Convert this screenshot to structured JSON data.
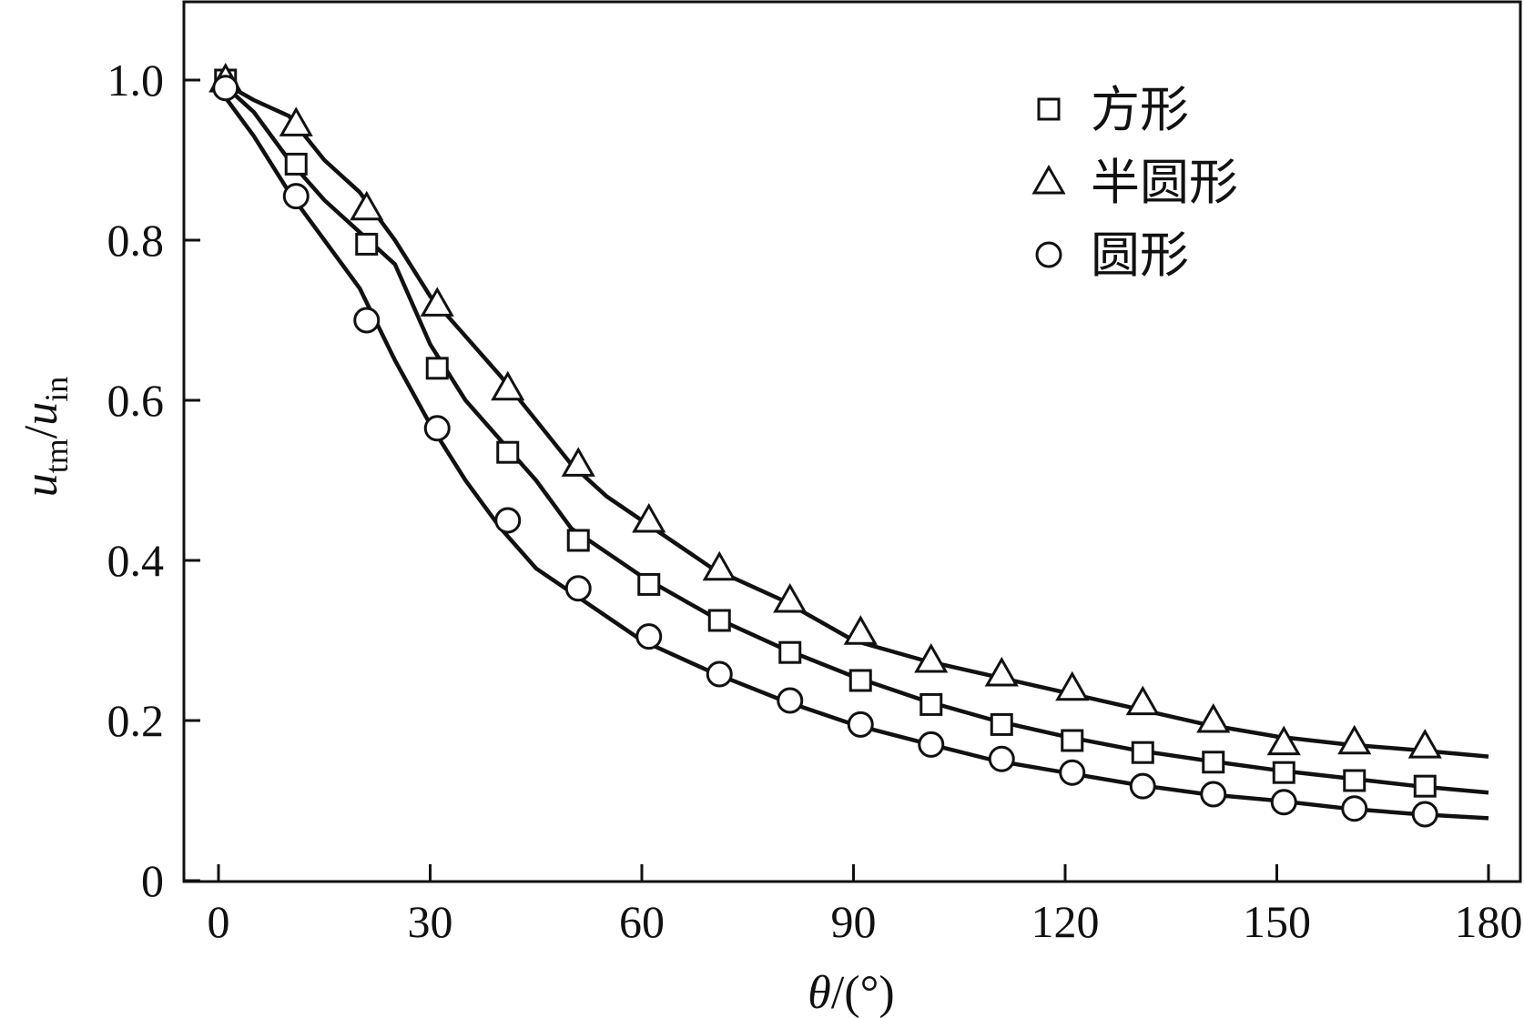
{
  "chart_data": {
    "type": "scatter",
    "xlabel": {
      "var": "θ",
      "unit": "/(°)"
    },
    "ylabel": {
      "main1": "u",
      "sub1": "tm",
      "slash": "/",
      "main2": "u",
      "sub2": "in"
    },
    "xlim": [
      -5,
      183
    ],
    "ylim": [
      0,
      1.1
    ],
    "xticks": [
      0,
      30,
      60,
      90,
      120,
      150,
      180
    ],
    "yticks": [
      0,
      0.2,
      0.4,
      0.6,
      0.8,
      1.0
    ],
    "xtick_labels": [
      "0",
      "30",
      "60",
      "90",
      "120",
      "150",
      "180"
    ],
    "ytick_labels": [
      "0",
      "0.2",
      "0.4",
      "0.6",
      "0.8",
      "1.0"
    ],
    "legend_position": "top-right",
    "series": [
      {
        "name": "方形",
        "marker": "square",
        "x": [
          1,
          11,
          21,
          31,
          41,
          51,
          61,
          71,
          81,
          91,
          101,
          111,
          121,
          131,
          141,
          151,
          161,
          171
        ],
        "y": [
          1.0,
          0.895,
          0.795,
          0.64,
          0.535,
          0.425,
          0.37,
          0.325,
          0.285,
          0.25,
          0.22,
          0.195,
          0.175,
          0.16,
          0.148,
          0.135,
          0.125,
          0.118
        ],
        "curve_x": [
          0,
          5,
          10,
          15,
          20,
          25,
          30,
          35,
          40,
          45,
          50,
          55,
          60,
          70,
          80,
          90,
          100,
          110,
          120,
          130,
          140,
          150,
          160,
          170,
          180
        ],
        "curve_y": [
          1.0,
          0.96,
          0.9,
          0.85,
          0.81,
          0.77,
          0.67,
          0.6,
          0.55,
          0.5,
          0.44,
          0.41,
          0.38,
          0.33,
          0.29,
          0.255,
          0.225,
          0.2,
          0.18,
          0.163,
          0.15,
          0.138,
          0.128,
          0.118,
          0.11
        ]
      },
      {
        "name": "半圆形",
        "marker": "triangle",
        "x": [
          1,
          11,
          21,
          31,
          41,
          51,
          61,
          71,
          81,
          91,
          101,
          111,
          121,
          131,
          141,
          151,
          161,
          171
        ],
        "y": [
          1.0,
          0.945,
          0.84,
          0.72,
          0.615,
          0.52,
          0.45,
          0.39,
          0.35,
          0.31,
          0.275,
          0.258,
          0.24,
          0.222,
          0.2,
          0.172,
          0.173,
          0.168
        ],
        "curve_x": [
          0,
          5,
          10,
          15,
          20,
          25,
          30,
          35,
          40,
          45,
          50,
          55,
          60,
          70,
          80,
          90,
          100,
          110,
          120,
          130,
          140,
          150,
          160,
          170,
          180
        ],
        "curve_y": [
          1.0,
          0.975,
          0.955,
          0.9,
          0.86,
          0.8,
          0.73,
          0.68,
          0.63,
          0.575,
          0.52,
          0.48,
          0.45,
          0.39,
          0.35,
          0.3,
          0.275,
          0.255,
          0.235,
          0.215,
          0.195,
          0.18,
          0.17,
          0.163,
          0.155
        ]
      },
      {
        "name": "圆形",
        "marker": "circle",
        "x": [
          1,
          11,
          21,
          31,
          41,
          51,
          61,
          71,
          81,
          91,
          101,
          111,
          121,
          131,
          141,
          151,
          161,
          171
        ],
        "y": [
          0.99,
          0.855,
          0.7,
          0.565,
          0.45,
          0.365,
          0.305,
          0.258,
          0.225,
          0.195,
          0.17,
          0.152,
          0.135,
          0.118,
          0.108,
          0.098,
          0.09,
          0.083
        ],
        "curve_x": [
          0,
          5,
          10,
          15,
          20,
          25,
          30,
          35,
          40,
          45,
          50,
          55,
          60,
          70,
          80,
          90,
          100,
          110,
          120,
          130,
          140,
          150,
          160,
          170,
          180
        ],
        "curve_y": [
          0.99,
          0.93,
          0.86,
          0.8,
          0.74,
          0.65,
          0.57,
          0.5,
          0.44,
          0.39,
          0.36,
          0.33,
          0.3,
          0.26,
          0.225,
          0.195,
          0.172,
          0.15,
          0.135,
          0.12,
          0.108,
          0.1,
          0.09,
          0.083,
          0.078
        ]
      }
    ]
  }
}
